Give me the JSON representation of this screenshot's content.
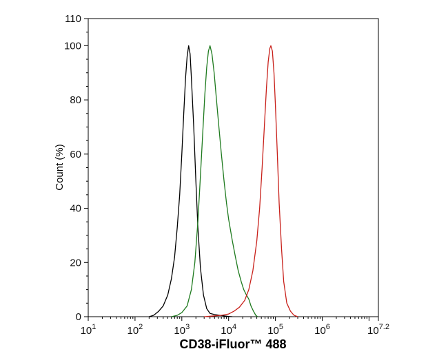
{
  "chart_data": {
    "type": "line",
    "title": "",
    "xlabel": "CD38-iFluor™ 488",
    "ylabel": "Count  (%)",
    "x_scale": "log10",
    "xlim": [
      10,
      15848931.92
    ],
    "ylim": [
      0,
      110
    ],
    "grid": false,
    "legend": "none",
    "x_ticks": [
      {
        "base": "10",
        "exp": "1"
      },
      {
        "base": "10",
        "exp": "2"
      },
      {
        "base": "10",
        "exp": "3"
      },
      {
        "base": "10",
        "exp": "4"
      },
      {
        "base": "10",
        "exp": "5"
      },
      {
        "base": "10",
        "exp": "6"
      },
      {
        "base": "10",
        "exp": "7.2"
      }
    ],
    "y_ticks": [
      "0",
      "20",
      "40",
      "60",
      "80",
      "100",
      "110"
    ],
    "series": [
      {
        "color": "#000000",
        "points": [
          [
            200,
            0
          ],
          [
            250,
            0.5
          ],
          [
            320,
            2
          ],
          [
            400,
            4
          ],
          [
            500,
            8
          ],
          [
            600,
            14
          ],
          [
            700,
            22
          ],
          [
            800,
            33
          ],
          [
            900,
            45
          ],
          [
            1000,
            60
          ],
          [
            1100,
            75
          ],
          [
            1200,
            88
          ],
          [
            1300,
            96
          ],
          [
            1400,
            100
          ],
          [
            1500,
            97
          ],
          [
            1600,
            88
          ],
          [
            1800,
            70
          ],
          [
            2000,
            50
          ],
          [
            2200,
            33
          ],
          [
            2500,
            18
          ],
          [
            2900,
            8
          ],
          [
            3400,
            3
          ],
          [
            4000,
            1.2
          ],
          [
            5000,
            0.8
          ],
          [
            6000,
            0.6
          ],
          [
            8000,
            0.3
          ],
          [
            10000,
            0.1
          ],
          [
            12000,
            0
          ]
        ]
      },
      {
        "color": "#1e7a1e",
        "points": [
          [
            600,
            0
          ],
          [
            800,
            0.5
          ],
          [
            1000,
            1.5
          ],
          [
            1300,
            4
          ],
          [
            1600,
            10
          ],
          [
            1900,
            20
          ],
          [
            2200,
            35
          ],
          [
            2500,
            52
          ],
          [
            2800,
            68
          ],
          [
            3100,
            82
          ],
          [
            3400,
            92
          ],
          [
            3700,
            98
          ],
          [
            4000,
            100
          ],
          [
            4400,
            97
          ],
          [
            4900,
            90
          ],
          [
            5500,
            80
          ],
          [
            6200,
            70
          ],
          [
            7000,
            60
          ],
          [
            8000,
            50
          ],
          [
            9000,
            42
          ],
          [
            10000,
            36
          ],
          [
            12000,
            28
          ],
          [
            14000,
            22
          ],
          [
            16000,
            17
          ],
          [
            18500,
            13
          ],
          [
            21000,
            10
          ],
          [
            24000,
            8
          ],
          [
            27000,
            6.5
          ],
          [
            30000,
            4
          ],
          [
            34000,
            2
          ],
          [
            38000,
            0.5
          ],
          [
            42000,
            0
          ]
        ]
      },
      {
        "color": "#c8201a",
        "points": [
          [
            3000,
            0
          ],
          [
            5000,
            0.3
          ],
          [
            7000,
            0.5
          ],
          [
            10000,
            1
          ],
          [
            13000,
            2
          ],
          [
            17000,
            3.5
          ],
          [
            22000,
            6
          ],
          [
            27000,
            10
          ],
          [
            33000,
            17
          ],
          [
            40000,
            28
          ],
          [
            46000,
            40
          ],
          [
            52000,
            55
          ],
          [
            58000,
            70
          ],
          [
            64000,
            84
          ],
          [
            70000,
            94
          ],
          [
            76000,
            99
          ],
          [
            80000,
            100
          ],
          [
            86000,
            98
          ],
          [
            93000,
            90
          ],
          [
            100000,
            78
          ],
          [
            110000,
            60
          ],
          [
            120000,
            42
          ],
          [
            135000,
            25
          ],
          [
            150000,
            13
          ],
          [
            175000,
            5
          ],
          [
            210000,
            2
          ],
          [
            250000,
            0.5
          ],
          [
            300000,
            0
          ]
        ]
      }
    ]
  }
}
